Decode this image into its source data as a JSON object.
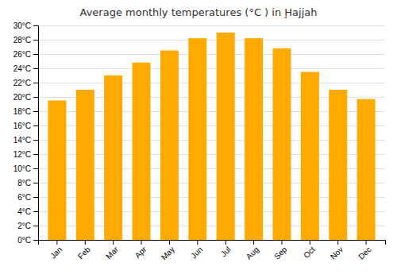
{
  "chart_data": {
    "type": "bar",
    "title": "Average monthly temperatures (°C ) in Ḩajjah",
    "categories": [
      "Jan",
      "Feb",
      "Mar",
      "Apr",
      "May",
      "Jun",
      "Jul",
      "Aug",
      "Sep",
      "Oct",
      "Nov",
      "Dec"
    ],
    "values": [
      19.5,
      21.0,
      23.0,
      24.8,
      26.5,
      28.2,
      29.0,
      28.2,
      26.8,
      23.5,
      21.0,
      19.7
    ],
    "color": "#FFAA00",
    "ylim": [
      0,
      30
    ],
    "yticks": [
      {
        "value": 0,
        "label": "0°C"
      },
      {
        "value": 2,
        "label": "2°C"
      },
      {
        "value": 4,
        "label": "4°C"
      },
      {
        "value": 6,
        "label": "6°C"
      },
      {
        "value": 8,
        "label": "8°C"
      },
      {
        "value": 10,
        "label": "10°C"
      },
      {
        "value": 12,
        "label": "12°C"
      },
      {
        "value": 14,
        "label": "14°C"
      },
      {
        "value": 16,
        "label": "16°C"
      },
      {
        "value": 18,
        "label": "18°C"
      },
      {
        "value": 20,
        "label": "20°C"
      },
      {
        "value": 22,
        "label": "22°C"
      },
      {
        "value": 24,
        "label": "24°C"
      },
      {
        "value": 26,
        "label": "26°C"
      },
      {
        "value": 28,
        "label": "28°C"
      },
      {
        "value": 30,
        "label": "30°C"
      }
    ],
    "grid": true
  }
}
